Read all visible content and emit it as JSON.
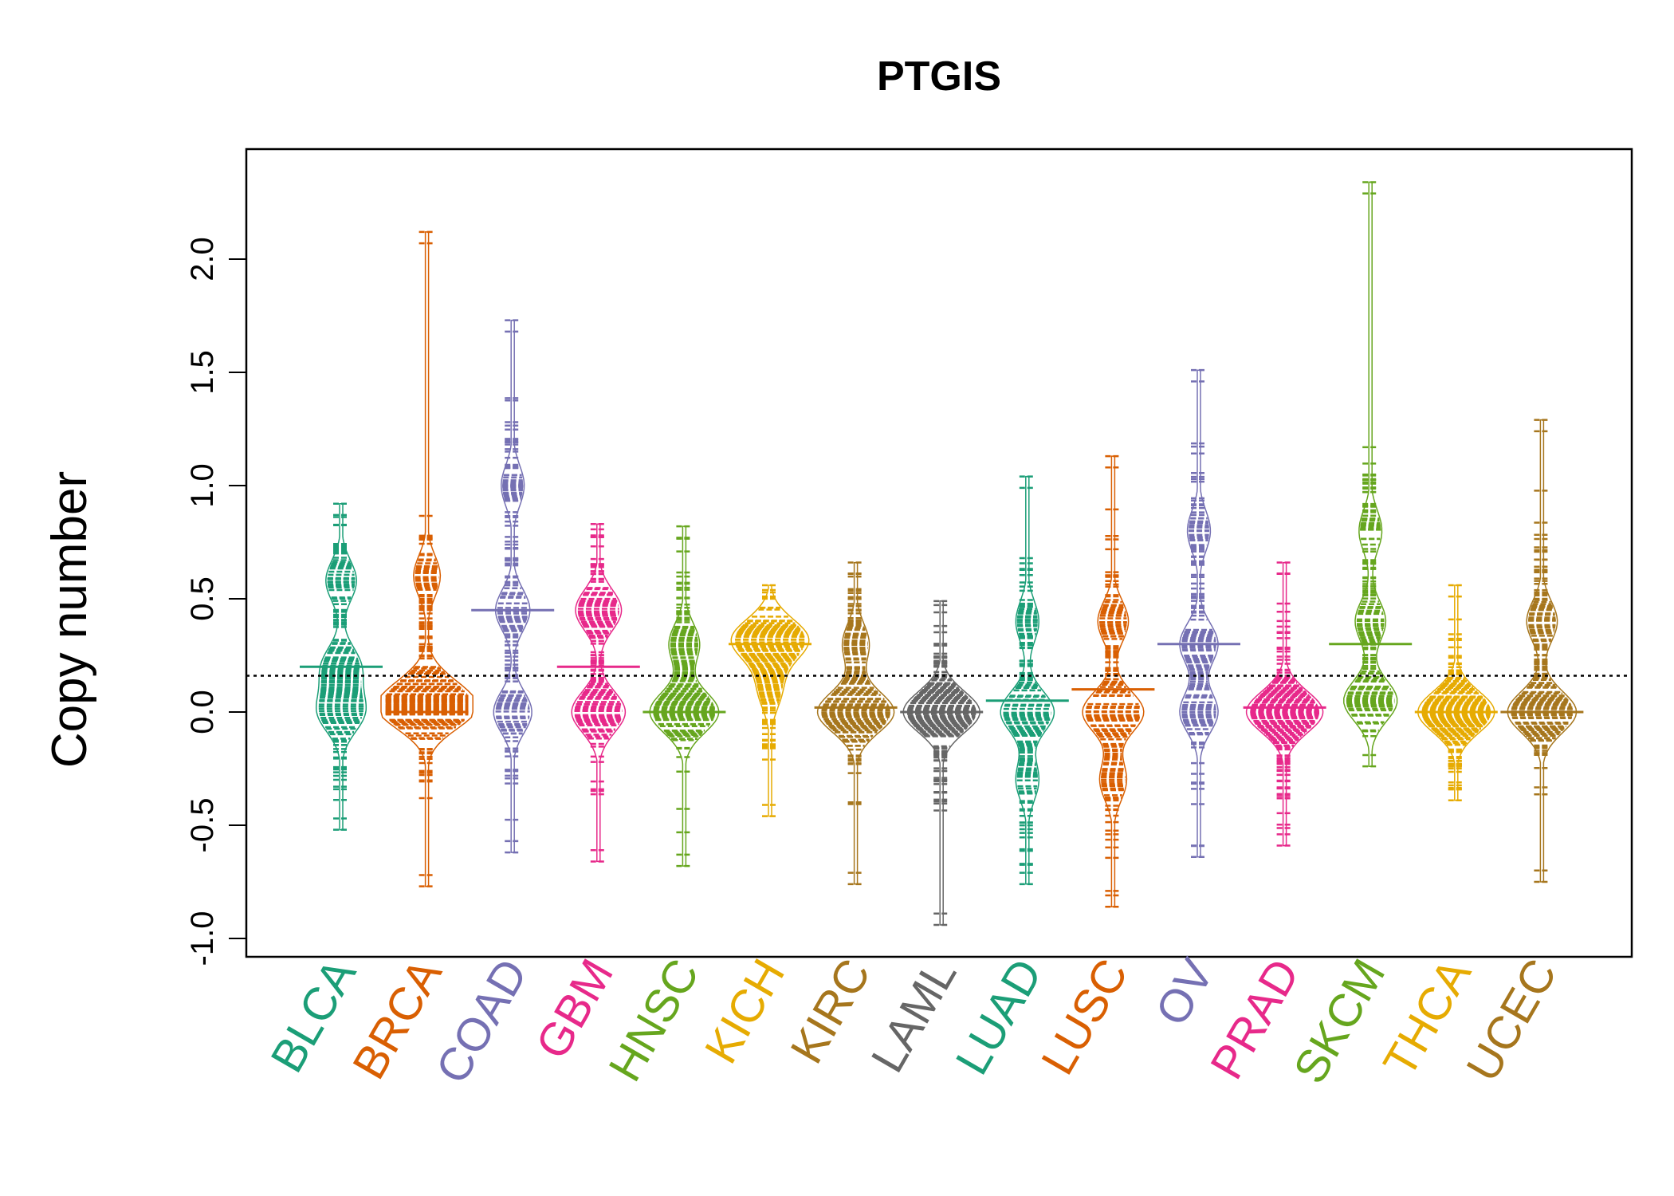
{
  "chart_data": {
    "type": "beanplot",
    "title": "PTGIS",
    "xlabel": "",
    "ylabel": "Copy number",
    "ylim": [
      -1.05,
      2.4
    ],
    "yticks": [
      -1.0,
      -0.5,
      0.0,
      0.5,
      1.0,
      1.5,
      2.0
    ],
    "ytick_labels": [
      "-1.0",
      "-0.5",
      "0.0",
      "0.5",
      "1.0",
      "1.5",
      "2.0"
    ],
    "reference_line": 0.16,
    "grid": false,
    "legend": "none",
    "categories": [
      "BLCA",
      "BRCA",
      "COAD",
      "GBM",
      "HNSC",
      "KICH",
      "KIRC",
      "LAML",
      "LUAD",
      "LUSC",
      "OV",
      "PRAD",
      "SKCM",
      "THCA",
      "UCEC"
    ],
    "colors": [
      "#1b9e77",
      "#d95f02",
      "#7570b3",
      "#e7298a",
      "#66a61e",
      "#e6ab02",
      "#a6761d",
      "#666666",
      "#1b9e77",
      "#d95f02",
      "#7570b3",
      "#e7298a",
      "#66a61e",
      "#e6ab02",
      "#a6761d"
    ],
    "series": [
      {
        "category": "BLCA",
        "min": -0.52,
        "max": 0.92,
        "mean": 0.2,
        "density_peaks": [
          [
            0.0,
            0.6
          ],
          [
            0.2,
            0.5
          ],
          [
            0.58,
            0.4
          ]
        ]
      },
      {
        "category": "BRCA",
        "min": -0.77,
        "max": 2.12,
        "mean": 0.0,
        "density_peaks": [
          [
            0.0,
            1.0
          ],
          [
            0.1,
            0.5
          ],
          [
            0.6,
            0.35
          ]
        ]
      },
      {
        "category": "COAD",
        "min": -0.62,
        "max": 1.73,
        "mean": 0.45,
        "density_peaks": [
          [
            0.0,
            0.5
          ],
          [
            0.45,
            0.45
          ],
          [
            1.0,
            0.3
          ]
        ]
      },
      {
        "category": "GBM",
        "min": -0.66,
        "max": 0.83,
        "mean": 0.2,
        "density_peaks": [
          [
            0.0,
            0.7
          ],
          [
            0.45,
            0.6
          ]
        ]
      },
      {
        "category": "HNSC",
        "min": -0.68,
        "max": 0.82,
        "mean": 0.0,
        "density_peaks": [
          [
            0.0,
            0.9
          ],
          [
            0.3,
            0.4
          ]
        ]
      },
      {
        "category": "KICH",
        "min": -0.46,
        "max": 0.56,
        "mean": 0.3,
        "density_peaks": [
          [
            0.32,
            1.0
          ],
          [
            0.1,
            0.3
          ]
        ]
      },
      {
        "category": "KIRC",
        "min": -0.76,
        "max": 0.66,
        "mean": 0.02,
        "density_peaks": [
          [
            0.0,
            1.0
          ],
          [
            0.3,
            0.35
          ]
        ]
      },
      {
        "category": "LAML",
        "min": -0.94,
        "max": 0.49,
        "mean": 0.0,
        "density_peaks": [
          [
            0.0,
            1.0
          ]
        ]
      },
      {
        "category": "LUAD",
        "min": -0.76,
        "max": 1.04,
        "mean": 0.05,
        "density_peaks": [
          [
            0.0,
            0.7
          ],
          [
            0.4,
            0.3
          ],
          [
            -0.3,
            0.3
          ]
        ]
      },
      {
        "category": "LUSC",
        "min": -0.86,
        "max": 1.13,
        "mean": 0.1,
        "density_peaks": [
          [
            0.0,
            0.8
          ],
          [
            0.4,
            0.4
          ],
          [
            -0.3,
            0.35
          ]
        ]
      },
      {
        "category": "OV",
        "min": -0.64,
        "max": 1.51,
        "mean": 0.3,
        "density_peaks": [
          [
            0.0,
            0.5
          ],
          [
            0.3,
            0.5
          ],
          [
            0.8,
            0.3
          ]
        ]
      },
      {
        "category": "PRAD",
        "min": -0.59,
        "max": 0.66,
        "mean": 0.02,
        "density_peaks": [
          [
            0.0,
            1.0
          ]
        ]
      },
      {
        "category": "SKCM",
        "min": -0.24,
        "max": 2.34,
        "mean": 0.3,
        "density_peaks": [
          [
            0.05,
            0.7
          ],
          [
            0.4,
            0.4
          ],
          [
            0.8,
            0.3
          ]
        ]
      },
      {
        "category": "THCA",
        "min": -0.39,
        "max": 0.56,
        "mean": 0.0,
        "density_peaks": [
          [
            0.0,
            1.0
          ]
        ]
      },
      {
        "category": "UCEC",
        "min": -0.75,
        "max": 1.29,
        "mean": 0.0,
        "density_peaks": [
          [
            0.0,
            0.9
          ],
          [
            0.4,
            0.4
          ]
        ]
      }
    ]
  }
}
